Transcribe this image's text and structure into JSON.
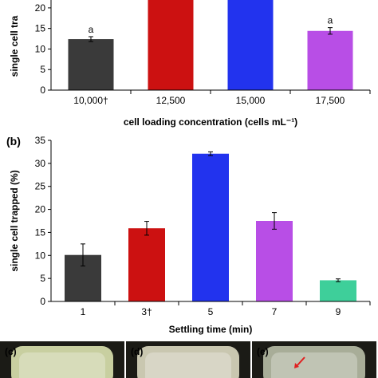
{
  "chart_data": [
    {
      "type": "bar",
      "panel_label": "",
      "xlabel": "cell loading concentration (cells mL⁻¹)",
      "ylabel": "single cell tra",
      "categories": [
        "10,000†",
        "12,500",
        "15,000",
        "17,500"
      ],
      "values": [
        12.4,
        25.0,
        25.0,
        14.4
      ],
      "errors": [
        0.6,
        0,
        0,
        0.8
      ],
      "colors": [
        "#3a3a3a",
        "#cc1111",
        "#2233ee",
        "#b84ee6"
      ],
      "annotations": [
        "a",
        "",
        "",
        "a"
      ],
      "ylim": [
        0,
        22.5
      ],
      "yticks": [
        0,
        5,
        10,
        15,
        20
      ],
      "grid": false
    },
    {
      "type": "bar",
      "panel_label": "(b)",
      "xlabel": "Settling time (min)",
      "ylabel": "single cell trapped (%)",
      "categories": [
        "1",
        "3†",
        "5",
        "7",
        "9"
      ],
      "values": [
        10.1,
        15.9,
        32.1,
        17.5,
        4.6
      ],
      "errors": [
        2.4,
        1.5,
        0.4,
        1.8,
        0.3
      ],
      "colors": [
        "#3a3a3a",
        "#cc1111",
        "#2233ee",
        "#b84ee6",
        "#3ecf9a"
      ],
      "annotations": [
        "",
        "",
        "",
        "",
        ""
      ],
      "ylim": [
        0,
        35
      ],
      "yticks": [
        0,
        5,
        10,
        15,
        20,
        25,
        30,
        35
      ],
      "grid": false
    }
  ],
  "photos": [
    {
      "label": "(c)",
      "bg": "#c8cfa0"
    },
    {
      "label": "(d)",
      "bg": "#c9c7b0"
    },
    {
      "label": "(e)",
      "bg": "#a8ad98",
      "arrow_color": "#e02020"
    }
  ]
}
